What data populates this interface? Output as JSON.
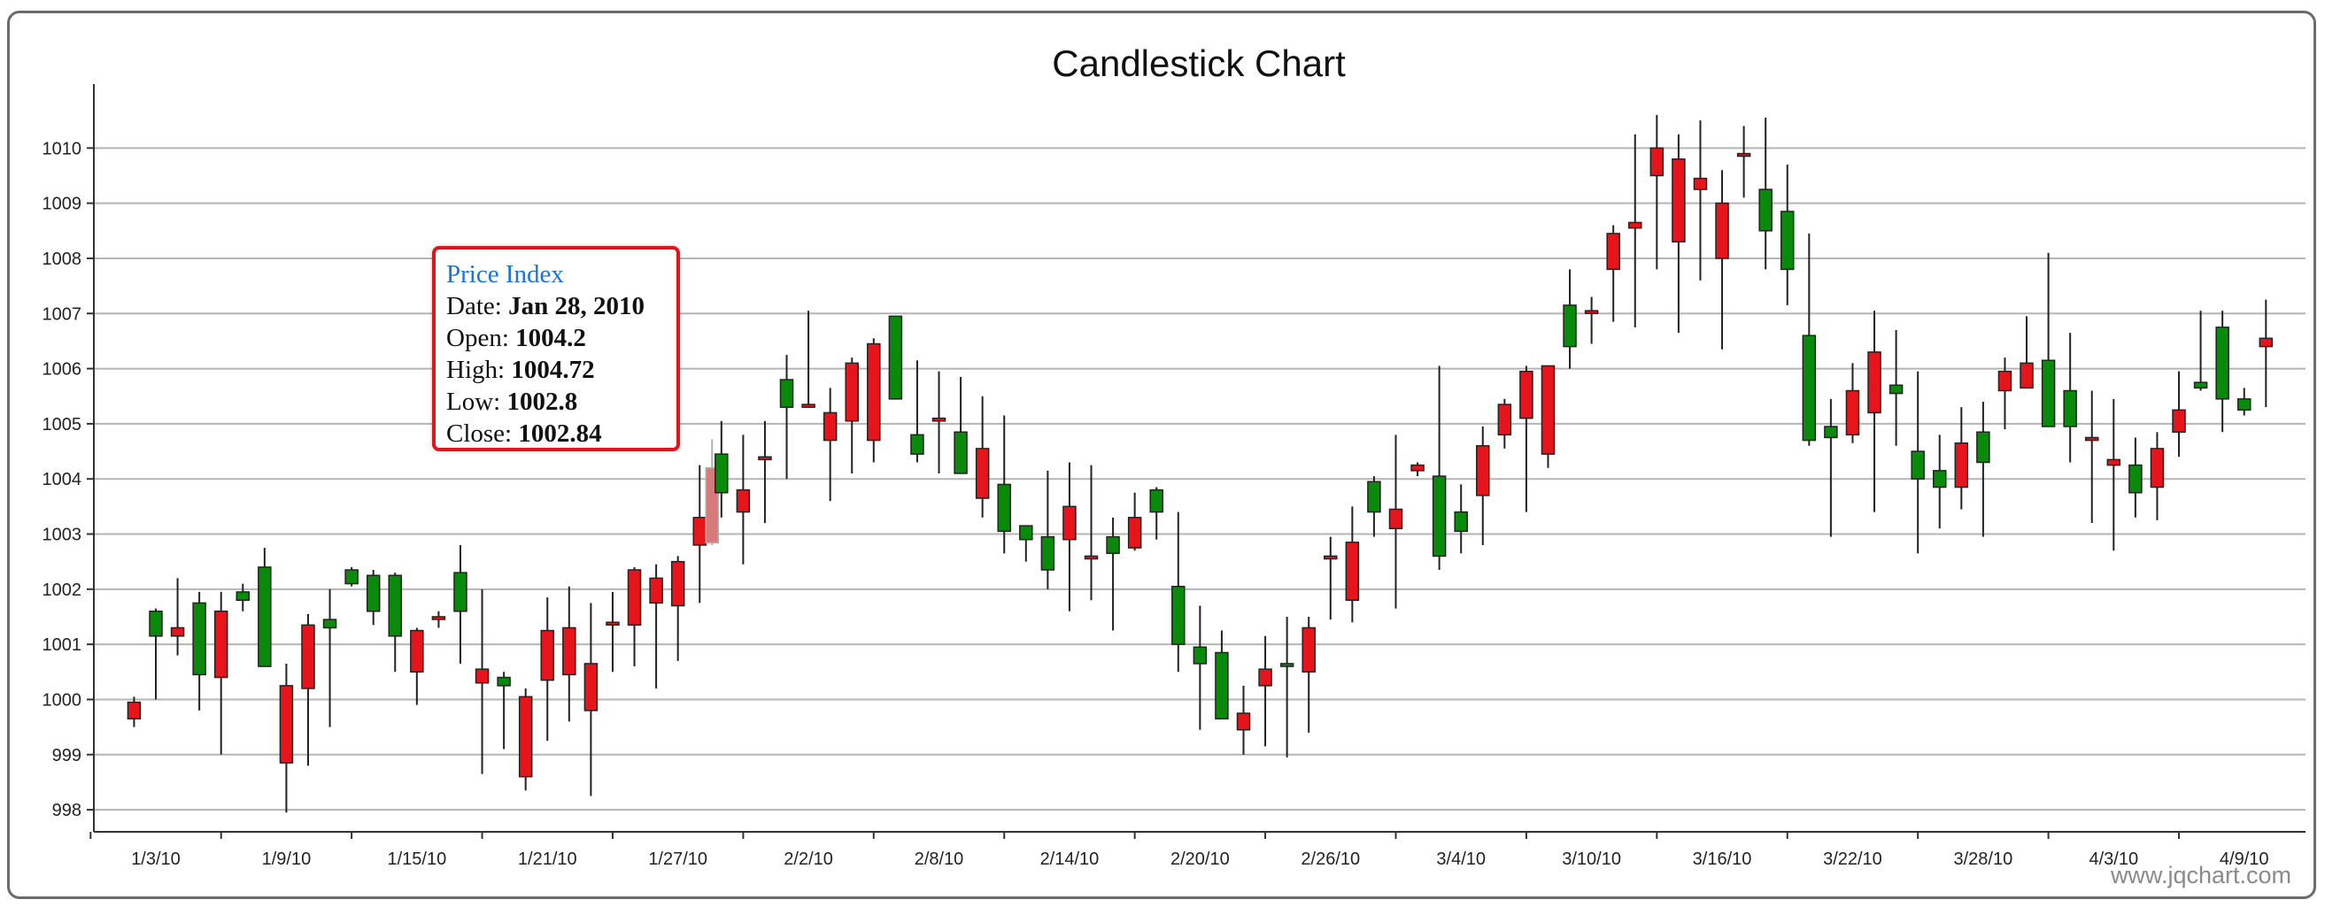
{
  "chart_data": {
    "type": "candlestick",
    "title": "Candlestick Chart",
    "ylim": [
      997.6,
      1011
    ],
    "yticks": [
      998,
      999,
      1000,
      1001,
      1002,
      1003,
      1004,
      1005,
      1006,
      1007,
      1008,
      1009,
      1010
    ],
    "xlabels": [
      "1/3/10",
      "1/9/10",
      "1/15/10",
      "1/21/10",
      "1/27/10",
      "2/2/10",
      "2/8/10",
      "2/14/10",
      "2/20/10",
      "2/26/10",
      "3/4/10",
      "3/10/10",
      "3/16/10",
      "3/22/10",
      "3/28/10",
      "4/3/10",
      "4/9/10"
    ],
    "xlabel_start": "2010-01-03",
    "grid": true,
    "up_color": "#0a8a0a",
    "down_color": "#e8141b",
    "highlight_color": "#d87a7c",
    "watermark": "www.jqchart.com",
    "candles": [
      {
        "date": "2010-01-02",
        "open": 999.95,
        "high": 1000.05,
        "low": 999.5,
        "close": 999.65
      },
      {
        "date": "2010-01-03",
        "open": 1001.15,
        "high": 1001.65,
        "low": 1000.0,
        "close": 1001.6
      },
      {
        "date": "2010-01-04",
        "open": 1001.3,
        "high": 1002.2,
        "low": 1000.8,
        "close": 1001.15
      },
      {
        "date": "2010-01-05",
        "open": 1000.45,
        "high": 1001.95,
        "low": 999.8,
        "close": 1001.75
      },
      {
        "date": "2010-01-06",
        "open": 1001.6,
        "high": 1001.95,
        "low": 999.0,
        "close": 1000.4
      },
      {
        "date": "2010-01-07",
        "open": 1001.8,
        "high": 1002.1,
        "low": 1001.6,
        "close": 1001.95
      },
      {
        "date": "2010-01-08",
        "open": 1000.6,
        "high": 1002.75,
        "low": 1000.6,
        "close": 1002.4
      },
      {
        "date": "2010-01-09",
        "open": 1000.25,
        "high": 1000.65,
        "low": 997.95,
        "close": 998.85
      },
      {
        "date": "2010-01-10",
        "open": 1001.35,
        "high": 1001.55,
        "low": 998.8,
        "close": 1000.2
      },
      {
        "date": "2010-01-11",
        "open": 1001.3,
        "high": 1002.0,
        "low": 999.5,
        "close": 1001.45
      },
      {
        "date": "2010-01-12",
        "open": 1002.1,
        "high": 1002.4,
        "low": 1002.05,
        "close": 1002.35
      },
      {
        "date": "2010-01-13",
        "open": 1001.6,
        "high": 1002.35,
        "low": 1001.35,
        "close": 1002.25
      },
      {
        "date": "2010-01-14",
        "open": 1001.15,
        "high": 1002.3,
        "low": 1000.5,
        "close": 1002.25
      },
      {
        "date": "2010-01-15",
        "open": 1001.25,
        "high": 1001.3,
        "low": 999.9,
        "close": 1000.5
      },
      {
        "date": "2010-01-16",
        "open": 1001.5,
        "high": 1001.6,
        "low": 1001.3,
        "close": 1001.5
      },
      {
        "date": "2010-01-17",
        "open": 1001.6,
        "high": 1002.8,
        "low": 1000.65,
        "close": 1002.3
      },
      {
        "date": "2010-01-18",
        "open": 1000.55,
        "high": 1002.0,
        "low": 998.65,
        "close": 1000.3
      },
      {
        "date": "2010-01-19",
        "open": 1000.25,
        "high": 1000.5,
        "low": 999.1,
        "close": 1000.4
      },
      {
        "date": "2010-01-20",
        "open": 1000.05,
        "high": 1000.2,
        "low": 998.35,
        "close": 998.6
      },
      {
        "date": "2010-01-21",
        "open": 1001.25,
        "high": 1001.85,
        "low": 999.25,
        "close": 1000.35
      },
      {
        "date": "2010-01-22",
        "open": 1001.3,
        "high": 1002.05,
        "low": 999.6,
        "close": 1000.45
      },
      {
        "date": "2010-01-23",
        "open": 1000.65,
        "high": 1001.75,
        "low": 998.25,
        "close": 999.8
      },
      {
        "date": "2010-01-24",
        "open": 1001.4,
        "high": 1001.95,
        "low": 1000.5,
        "close": 1001.4
      },
      {
        "date": "2010-01-25",
        "open": 1002.35,
        "high": 1002.4,
        "low": 1000.6,
        "close": 1001.35
      },
      {
        "date": "2010-01-26",
        "open": 1002.2,
        "high": 1002.45,
        "low": 1000.2,
        "close": 1001.75
      },
      {
        "date": "2010-01-27",
        "open": 1002.5,
        "high": 1002.6,
        "low": 1000.7,
        "close": 1001.7
      },
      {
        "date": "2010-01-28",
        "open": 1003.3,
        "high": 1004.25,
        "low": 1001.75,
        "close": 1002.8
      },
      {
        "date": "2010-01-28",
        "open": 1004.2,
        "high": 1004.72,
        "low": 1002.8,
        "close": 1002.84,
        "highlighted": true
      },
      {
        "date": "2010-01-29",
        "open": 1003.75,
        "high": 1005.05,
        "low": 1003.3,
        "close": 1004.45
      },
      {
        "date": "2010-01-30",
        "open": 1003.8,
        "high": 1004.8,
        "low": 1002.45,
        "close": 1003.4
      },
      {
        "date": "2010-01-31",
        "open": 1004.4,
        "high": 1005.05,
        "low": 1003.2,
        "close": 1004.35
      },
      {
        "date": "2010-02-01",
        "open": 1005.3,
        "high": 1006.25,
        "low": 1004.0,
        "close": 1005.8
      },
      {
        "date": "2010-02-02",
        "open": 1005.35,
        "high": 1007.05,
        "low": 1005.3,
        "close": 1005.3
      },
      {
        "date": "2010-02-03",
        "open": 1005.2,
        "high": 1005.65,
        "low": 1003.6,
        "close": 1004.7
      },
      {
        "date": "2010-02-04",
        "open": 1006.1,
        "high": 1006.2,
        "low": 1004.1,
        "close": 1005.05
      },
      {
        "date": "2010-02-05",
        "open": 1006.45,
        "high": 1006.55,
        "low": 1004.3,
        "close": 1004.7
      },
      {
        "date": "2010-02-06",
        "open": 1005.45,
        "high": 1006.95,
        "low": 1005.45,
        "close": 1006.95
      },
      {
        "date": "2010-02-07",
        "open": 1004.45,
        "high": 1006.15,
        "low": 1004.3,
        "close": 1004.8
      },
      {
        "date": "2010-02-08",
        "open": 1005.1,
        "high": 1005.95,
        "low": 1004.1,
        "close": 1005.05
      },
      {
        "date": "2010-02-09",
        "open": 1004.1,
        "high": 1005.85,
        "low": 1004.1,
        "close": 1004.85
      },
      {
        "date": "2010-02-10",
        "open": 1004.55,
        "high": 1005.5,
        "low": 1003.3,
        "close": 1003.65
      },
      {
        "date": "2010-02-11",
        "open": 1003.05,
        "high": 1005.15,
        "low": 1002.65,
        "close": 1003.9
      },
      {
        "date": "2010-02-12",
        "open": 1002.9,
        "high": 1003.1,
        "low": 1002.5,
        "close": 1003.15
      },
      {
        "date": "2010-02-13",
        "open": 1002.35,
        "high": 1004.15,
        "low": 1002.0,
        "close": 1002.95
      },
      {
        "date": "2010-02-14",
        "open": 1003.5,
        "high": 1004.3,
        "low": 1001.6,
        "close": 1002.9
      },
      {
        "date": "2010-02-15",
        "open": 1002.6,
        "high": 1004.25,
        "low": 1001.8,
        "close": 1002.55
      },
      {
        "date": "2010-02-16",
        "open": 1002.65,
        "high": 1003.3,
        "low": 1001.25,
        "close": 1002.95
      },
      {
        "date": "2010-02-17",
        "open": 1003.3,
        "high": 1003.75,
        "low": 1002.7,
        "close": 1002.75
      },
      {
        "date": "2010-02-18",
        "open": 1003.4,
        "high": 1003.85,
        "low": 1002.9,
        "close": 1003.8
      },
      {
        "date": "2010-02-19",
        "open": 1001.0,
        "high": 1003.4,
        "low": 1000.5,
        "close": 1002.05
      },
      {
        "date": "2010-02-20",
        "open": 1000.65,
        "high": 1001.7,
        "low": 999.45,
        "close": 1000.95
      },
      {
        "date": "2010-02-21",
        "open": 999.65,
        "high": 1001.25,
        "low": 999.65,
        "close": 1000.85
      },
      {
        "date": "2010-02-22",
        "open": 999.75,
        "high": 1000.25,
        "low": 999.0,
        "close": 999.45
      },
      {
        "date": "2010-02-23",
        "open": 1000.55,
        "high": 1001.15,
        "low": 999.15,
        "close": 1000.25
      },
      {
        "date": "2010-02-24",
        "open": 1000.6,
        "high": 1001.5,
        "low": 998.95,
        "close": 1000.65
      },
      {
        "date": "2010-02-25",
        "open": 1001.3,
        "high": 1001.5,
        "low": 999.4,
        "close": 1000.5
      },
      {
        "date": "2010-02-26",
        "open": 1002.6,
        "high": 1002.95,
        "low": 1001.45,
        "close": 1002.55
      },
      {
        "date": "2010-02-27",
        "open": 1002.85,
        "high": 1003.5,
        "low": 1001.4,
        "close": 1001.8
      },
      {
        "date": "2010-02-28",
        "open": 1003.4,
        "high": 1004.05,
        "low": 1002.95,
        "close": 1003.95
      },
      {
        "date": "2010-03-01",
        "open": 1003.45,
        "high": 1004.8,
        "low": 1001.65,
        "close": 1003.1
      },
      {
        "date": "2010-03-02",
        "open": 1004.25,
        "high": 1004.3,
        "low": 1004.05,
        "close": 1004.15
      },
      {
        "date": "2010-03-03",
        "open": 1002.6,
        "high": 1006.05,
        "low": 1002.35,
        "close": 1004.05
      },
      {
        "date": "2010-03-04",
        "open": 1003.05,
        "high": 1003.9,
        "low": 1002.65,
        "close": 1003.4
      },
      {
        "date": "2010-03-05",
        "open": 1004.6,
        "high": 1004.95,
        "low": 1002.8,
        "close": 1003.7
      },
      {
        "date": "2010-03-06",
        "open": 1005.35,
        "high": 1005.45,
        "low": 1004.55,
        "close": 1004.8
      },
      {
        "date": "2010-03-07",
        "open": 1005.95,
        "high": 1006.05,
        "low": 1003.4,
        "close": 1005.1
      },
      {
        "date": "2010-03-08",
        "open": 1006.05,
        "high": 1006.05,
        "low": 1004.2,
        "close": 1004.45
      },
      {
        "date": "2010-03-09",
        "open": 1006.4,
        "high": 1007.8,
        "low": 1006.0,
        "close": 1007.15
      },
      {
        "date": "2010-03-10",
        "open": 1007.05,
        "high": 1007.3,
        "low": 1006.45,
        "close": 1007.05
      },
      {
        "date": "2010-03-11",
        "open": 1008.45,
        "high": 1008.6,
        "low": 1006.85,
        "close": 1007.8
      },
      {
        "date": "2010-03-12",
        "open": 1008.65,
        "high": 1010.25,
        "low": 1006.75,
        "close": 1008.55
      },
      {
        "date": "2010-03-13",
        "open": 1010.0,
        "high": 1010.6,
        "low": 1007.8,
        "close": 1009.5
      },
      {
        "date": "2010-03-14",
        "open": 1009.8,
        "high": 1010.25,
        "low": 1006.65,
        "close": 1008.3
      },
      {
        "date": "2010-03-15",
        "open": 1009.45,
        "high": 1010.5,
        "low": 1007.6,
        "close": 1009.25
      },
      {
        "date": "2010-03-16",
        "open": 1009.0,
        "high": 1009.6,
        "low": 1006.35,
        "close": 1008.0
      },
      {
        "date": "2010-03-17",
        "open": 1009.9,
        "high": 1010.4,
        "low": 1009.1,
        "close": 1009.9
      },
      {
        "date": "2010-03-18",
        "open": 1008.5,
        "high": 1010.55,
        "low": 1007.8,
        "close": 1009.25
      },
      {
        "date": "2010-03-19",
        "open": 1007.8,
        "high": 1009.7,
        "low": 1007.15,
        "close": 1008.85
      },
      {
        "date": "2010-03-20",
        "open": 1004.7,
        "high": 1008.45,
        "low": 1004.6,
        "close": 1006.6
      },
      {
        "date": "2010-03-21",
        "open": 1004.75,
        "high": 1005.45,
        "low": 1002.95,
        "close": 1004.95
      },
      {
        "date": "2010-03-22",
        "open": 1005.6,
        "high": 1006.1,
        "low": 1004.65,
        "close": 1004.8
      },
      {
        "date": "2010-03-23",
        "open": 1006.3,
        "high": 1007.05,
        "low": 1003.4,
        "close": 1005.2
      },
      {
        "date": "2010-03-24",
        "open": 1005.55,
        "high": 1006.7,
        "low": 1004.6,
        "close": 1005.7
      },
      {
        "date": "2010-03-25",
        "open": 1004.0,
        "high": 1005.95,
        "low": 1002.65,
        "close": 1004.5
      },
      {
        "date": "2010-03-26",
        "open": 1003.85,
        "high": 1004.8,
        "low": 1003.1,
        "close": 1004.15
      },
      {
        "date": "2010-03-27",
        "open": 1004.65,
        "high": 1005.3,
        "low": 1003.45,
        "close": 1003.85
      },
      {
        "date": "2010-03-28",
        "open": 1004.3,
        "high": 1005.4,
        "low": 1002.95,
        "close": 1004.85
      },
      {
        "date": "2010-03-29",
        "open": 1005.95,
        "high": 1006.2,
        "low": 1004.9,
        "close": 1005.6
      },
      {
        "date": "2010-03-30",
        "open": 1006.1,
        "high": 1006.95,
        "low": 1005.65,
        "close": 1005.65
      },
      {
        "date": "2010-03-31",
        "open": 1004.95,
        "high": 1008.1,
        "low": 1004.95,
        "close": 1006.15
      },
      {
        "date": "2010-04-01",
        "open": 1004.95,
        "high": 1006.65,
        "low": 1004.3,
        "close": 1005.6
      },
      {
        "date": "2010-04-02",
        "open": 1004.75,
        "high": 1005.6,
        "low": 1003.2,
        "close": 1004.7
      },
      {
        "date": "2010-04-03",
        "open": 1004.35,
        "high": 1005.45,
        "low": 1002.7,
        "close": 1004.25
      },
      {
        "date": "2010-04-04",
        "open": 1003.75,
        "high": 1004.75,
        "low": 1003.3,
        "close": 1004.25
      },
      {
        "date": "2010-04-05",
        "open": 1004.55,
        "high": 1004.85,
        "low": 1003.25,
        "close": 1003.85
      },
      {
        "date": "2010-04-06",
        "open": 1005.25,
        "high": 1005.95,
        "low": 1004.4,
        "close": 1004.85
      },
      {
        "date": "2010-04-07",
        "open": 1005.65,
        "high": 1007.05,
        "low": 1005.6,
        "close": 1005.75
      },
      {
        "date": "2010-04-08",
        "open": 1005.45,
        "high": 1007.05,
        "low": 1004.85,
        "close": 1006.75
      },
      {
        "date": "2010-04-09",
        "open": 1005.25,
        "high": 1005.65,
        "low": 1005.15,
        "close": 1005.45
      },
      {
        "date": "2010-04-10",
        "open": 1006.55,
        "high": 1007.25,
        "low": 1005.3,
        "close": 1006.4
      }
    ]
  },
  "tooltip": {
    "title": "Price Index",
    "date_label": "Date: ",
    "date_value": "Jan 28, 2010",
    "open_label": "Open: ",
    "open_value": "1004.2",
    "high_label": "High: ",
    "high_value": "1004.72",
    "low_label": "Low: ",
    "low_value": "1002.8",
    "close_label": "Close: ",
    "close_value": "1002.84"
  }
}
